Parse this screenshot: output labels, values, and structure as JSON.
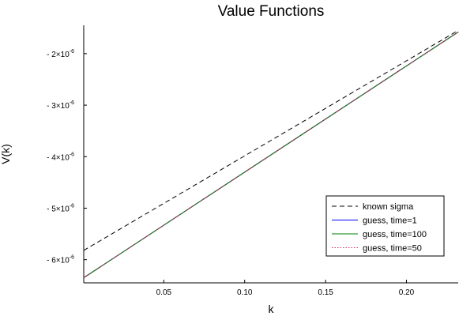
{
  "chart_data": {
    "type": "line",
    "title": "Value Functions",
    "xlabel": "k",
    "ylabel": "V(k)",
    "xlim": [
      0.0005,
      0.232
    ],
    "ylim": [
      -6.45e-06,
      -1.45e-06
    ],
    "x_ticks": [
      {
        "value": 0.05,
        "label": "0.05"
      },
      {
        "value": 0.1,
        "label": "0.10"
      },
      {
        "value": 0.15,
        "label": "0.15"
      },
      {
        "value": 0.2,
        "label": "0.20"
      }
    ],
    "y_ticks": [
      {
        "value": -2e-06,
        "label": "- 2×10",
        "exp": "-6"
      },
      {
        "value": -3e-06,
        "label": "- 3×10",
        "exp": "-6"
      },
      {
        "value": -4e-06,
        "label": "- 4×10",
        "exp": "-6"
      },
      {
        "value": -5e-06,
        "label": "- 5×10",
        "exp": "-6"
      },
      {
        "value": -6e-06,
        "label": "- 6×10",
        "exp": "-6"
      }
    ],
    "grid": false,
    "legend_position": "bottom-right",
    "series": [
      {
        "name": "known sigma",
        "color": "#000000",
        "dash": "dashed",
        "x": [
          0.0005,
          0.232
        ],
        "y": [
          -5.82e-06,
          -1.55e-06
        ]
      },
      {
        "name": "guess, time=1",
        "color": "#0000ff",
        "dash": "solid",
        "x": [
          0.0005,
          0.232
        ],
        "y": [
          -6.35e-06,
          -1.58e-06
        ]
      },
      {
        "name": "guess, time=100",
        "color": "#008000",
        "dash": "solid",
        "x": [
          0.0005,
          0.232
        ],
        "y": [
          -6.35e-06,
          -1.58e-06
        ]
      },
      {
        "name": "guess, time=50",
        "color": "#cc3366",
        "dash": "dotted",
        "x": [
          0.0005,
          0.232
        ],
        "y": [
          -6.35e-06,
          -1.58e-06
        ]
      }
    ]
  }
}
